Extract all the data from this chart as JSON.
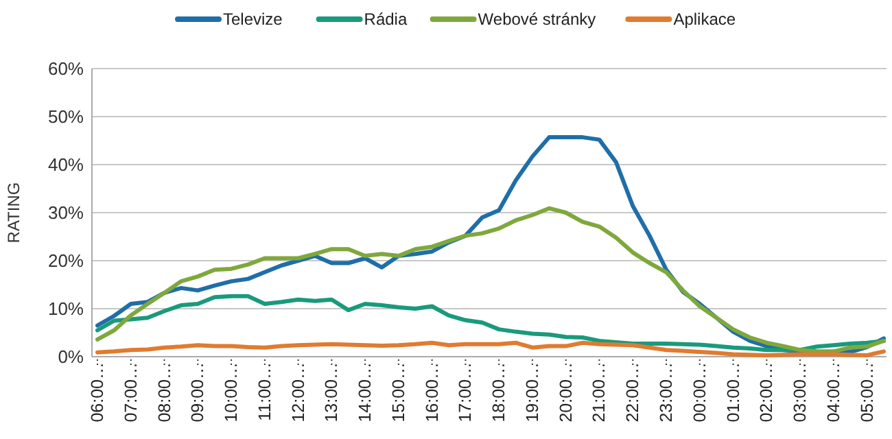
{
  "chart_data": {
    "type": "line",
    "ylabel": "RATING",
    "legend": "top",
    "grid": "y",
    "line_style": "solid",
    "marker": "none",
    "categories": [
      "06:00…",
      null,
      "07:00…",
      null,
      "08:00…",
      null,
      "09:00…",
      null,
      "10:00…",
      null,
      "11:00…",
      null,
      "12:00…",
      null,
      "13:00…",
      null,
      "14:00…",
      null,
      "15:00…",
      null,
      "16:00…",
      null,
      "17:00…",
      null,
      "18:00…",
      null,
      "19:00…",
      null,
      "20:00…",
      null,
      "21:00…",
      null,
      "22:00…",
      null,
      "23:00…",
      null,
      "00:00…",
      null,
      "01:00…",
      null,
      "02:00…",
      null,
      "03:00…",
      null,
      "04:00…",
      null,
      "05:00…",
      null
    ],
    "ylim": [
      0,
      60
    ],
    "yticks": [
      {
        "value": 0,
        "label": "0%"
      },
      {
        "value": 10,
        "label": "10%"
      },
      {
        "value": 20,
        "label": "20%"
      },
      {
        "value": 30,
        "label": "30%"
      },
      {
        "value": 40,
        "label": "40%"
      },
      {
        "value": 50,
        "label": "50%"
      },
      {
        "value": 60,
        "label": "60%"
      }
    ],
    "series": [
      {
        "name": "Televize",
        "color": "#1f6ea8",
        "values": [
          6.5,
          8.5,
          11,
          11.4,
          13.3,
          14.3,
          13.8,
          14.8,
          15.7,
          16.2,
          17.6,
          19,
          20,
          21,
          19.5,
          19.5,
          20.5,
          18.6,
          21,
          21.4,
          21.9,
          23.8,
          25.2,
          29,
          30.5,
          36.7,
          41.7,
          45.7,
          45.7,
          45.7,
          45.2,
          40.5,
          31.4,
          25.2,
          18.1,
          13.5,
          11,
          8.1,
          5.2,
          3.3,
          2.2,
          1.4,
          1.1,
          1,
          1,
          1,
          2,
          3.8
        ]
      },
      {
        "name": "Rádia",
        "color": "#1a9a7c",
        "values": [
          5.5,
          7.5,
          7.8,
          8.1,
          9.5,
          10.7,
          11,
          12.4,
          12.6,
          12.6,
          11,
          11.4,
          11.9,
          11.6,
          11.9,
          9.7,
          11,
          10.7,
          10.3,
          10,
          10.5,
          8.6,
          7.6,
          7.1,
          5.7,
          5.2,
          4.8,
          4.6,
          4.1,
          4,
          3.3,
          3,
          2.7,
          2.7,
          2.7,
          2.6,
          2.5,
          2.2,
          1.9,
          1.7,
          1.4,
          1.4,
          1.4,
          2.1,
          2.4,
          2.7,
          2.9,
          3.3
        ]
      },
      {
        "name": "Webové stránky",
        "color": "#7fa83c",
        "values": [
          3.6,
          5.5,
          8.6,
          11,
          13.3,
          15.7,
          16.7,
          18.1,
          18.3,
          19.2,
          20.5,
          20.5,
          20.5,
          21.4,
          22.4,
          22.4,
          21,
          21.4,
          21,
          22.4,
          22.9,
          24.1,
          25.2,
          25.7,
          26.7,
          28.4,
          29.5,
          30.9,
          30,
          28.1,
          27.1,
          24.8,
          21.7,
          19.5,
          17.6,
          13.8,
          10.5,
          8.1,
          5.7,
          4,
          2.9,
          2.2,
          1.4,
          1.1,
          1.1,
          1.9,
          2.1,
          3.3
        ]
      },
      {
        "name": "Aplikace",
        "color": "#e07b30",
        "values": [
          0.9,
          1.1,
          1.4,
          1.5,
          1.9,
          2.1,
          2.4,
          2.2,
          2.2,
          2,
          1.9,
          2.2,
          2.4,
          2.5,
          2.6,
          2.5,
          2.4,
          2.3,
          2.4,
          2.6,
          2.9,
          2.4,
          2.6,
          2.6,
          2.6,
          2.9,
          1.9,
          2.2,
          2.2,
          2.9,
          2.6,
          2.5,
          2.4,
          1.9,
          1.4,
          1.2,
          1,
          0.8,
          0.5,
          0.4,
          0.3,
          0.4,
          0.5,
          0.5,
          0.5,
          0.4,
          0.3,
          1.1
        ]
      }
    ]
  }
}
